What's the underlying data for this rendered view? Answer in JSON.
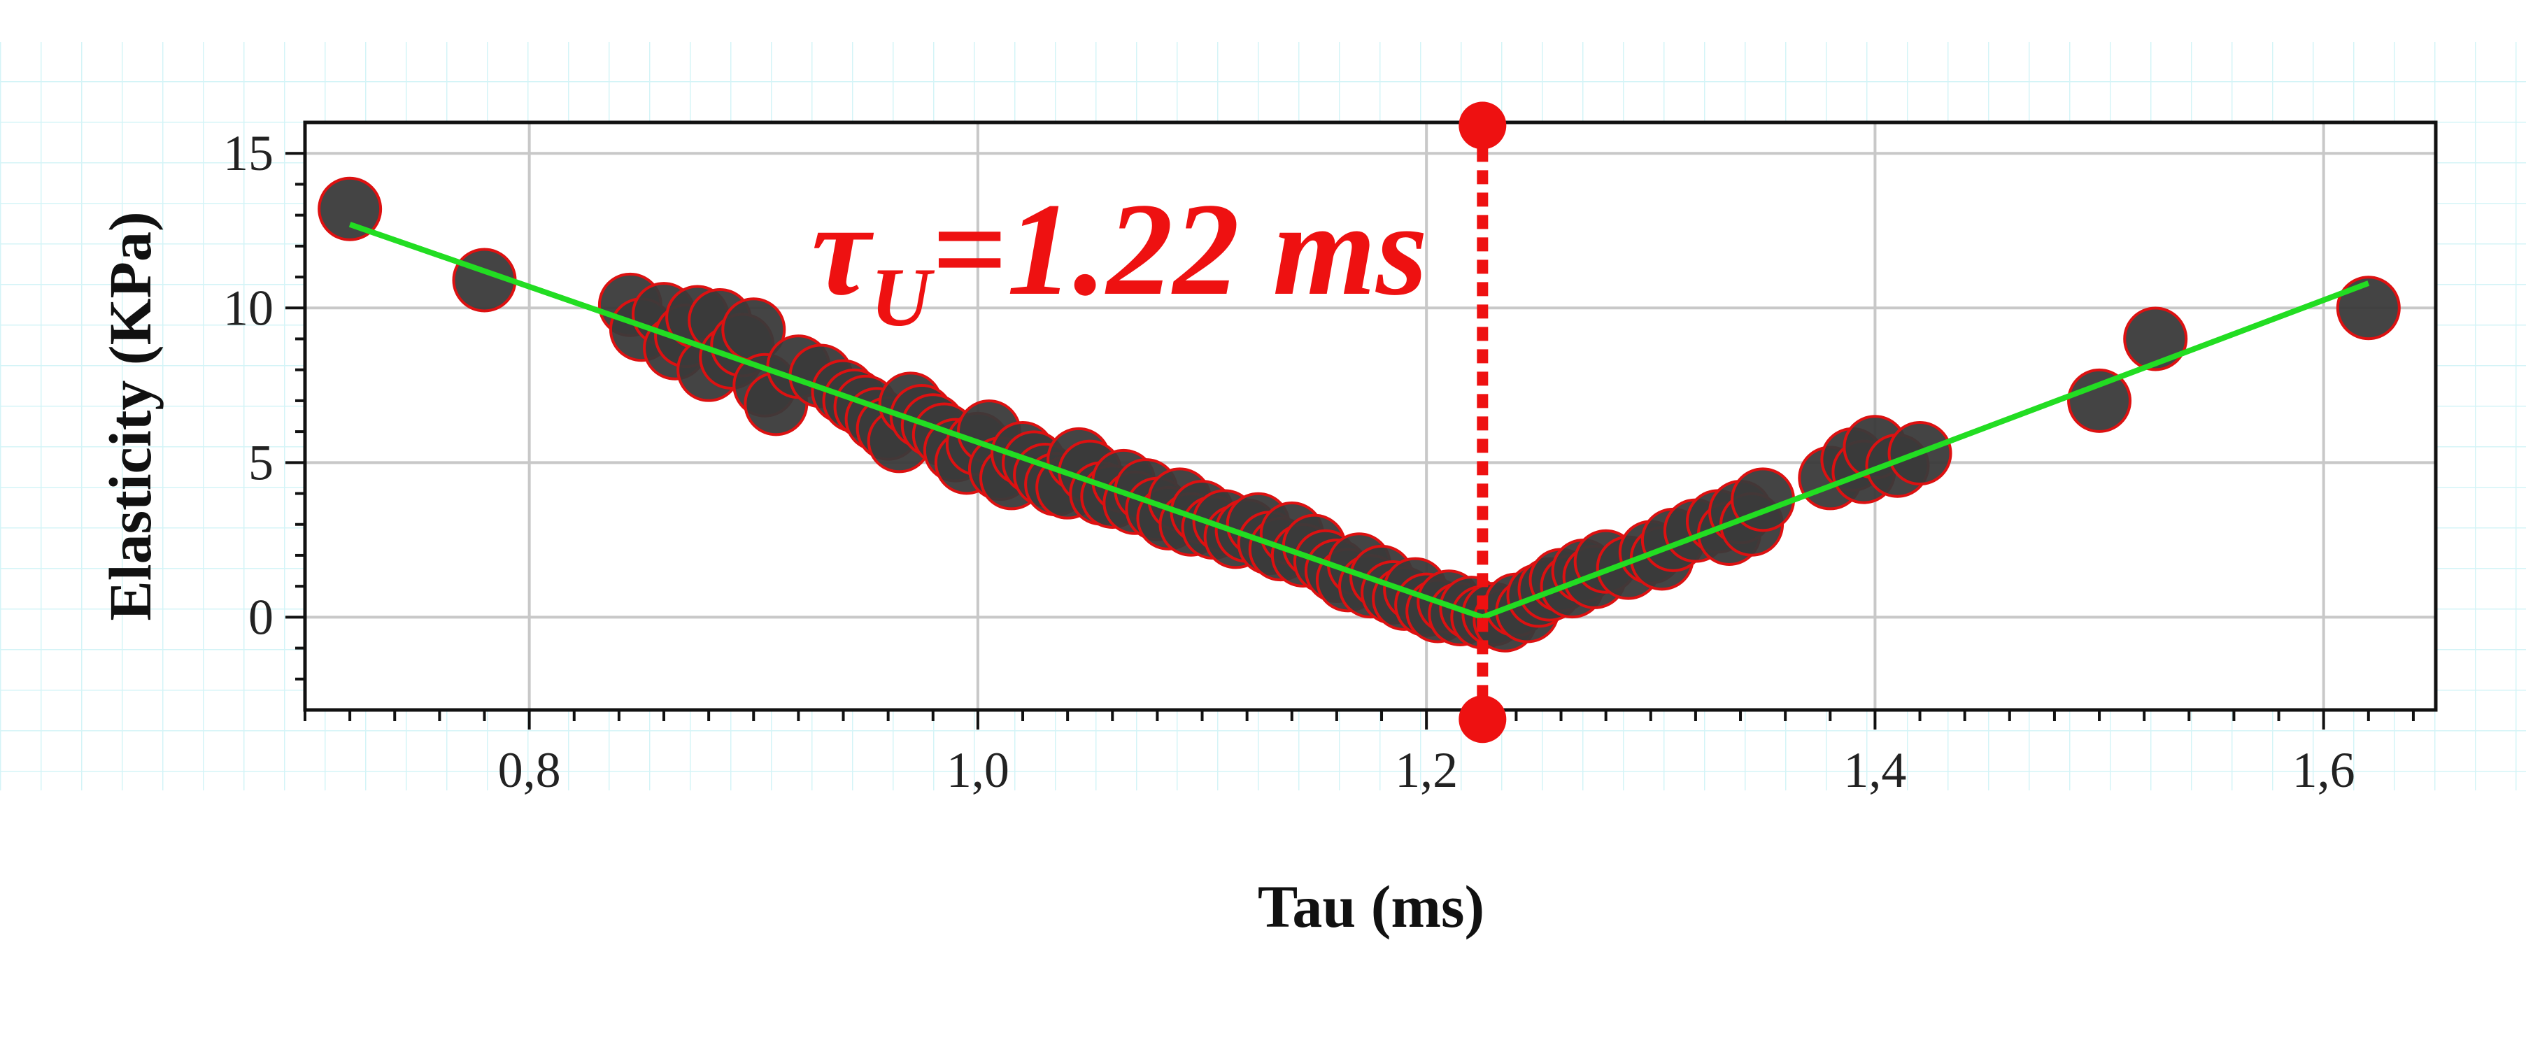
{
  "chart_data": {
    "type": "scatter",
    "title": "",
    "xlabel": "Tau (ms)",
    "ylabel": "Elasticity (KPa)",
    "xlim": [
      0.7,
      1.65
    ],
    "ylim": [
      -3,
      16
    ],
    "xticks": [
      0.8,
      1.0,
      1.2,
      1.4,
      1.6
    ],
    "xtick_labels": [
      "0,8",
      "1,0",
      "1,2",
      "1,4",
      "1,6"
    ],
    "yticks": [
      0,
      5,
      10,
      15
    ],
    "ytick_labels": [
      "0",
      "5",
      "10",
      "15"
    ],
    "grid": true,
    "legend": "none",
    "colors": {
      "marker_fill": "#3a3a3a",
      "marker_edge": "#dd1111",
      "fit_line": "#22dd22",
      "annotation": "#ee1111",
      "background_grid": "#d4f4f7"
    },
    "series": [
      {
        "x": [
          0.72,
          0.78,
          0.845,
          0.85,
          0.86,
          0.865,
          0.87,
          0.875,
          0.88,
          0.885,
          0.89,
          0.895,
          0.9,
          0.905,
          0.91,
          0.92,
          0.93,
          0.94,
          0.945,
          0.95,
          0.955,
          0.96,
          0.965,
          0.97,
          0.975,
          0.98,
          0.985,
          0.99,
          0.995,
          1.0,
          1.005,
          1.01,
          1.015,
          1.02,
          1.025,
          1.03,
          1.035,
          1.04,
          1.045,
          1.05,
          1.055,
          1.06,
          1.065,
          1.07,
          1.075,
          1.08,
          1.085,
          1.09,
          1.095,
          1.1,
          1.105,
          1.11,
          1.115,
          1.12,
          1.125,
          1.13,
          1.135,
          1.14,
          1.145,
          1.15,
          1.155,
          1.16,
          1.165,
          1.17,
          1.175,
          1.18,
          1.185,
          1.19,
          1.195,
          1.2,
          1.205,
          1.21,
          1.215,
          1.22,
          1.225,
          1.23,
          1.235,
          1.24,
          1.245,
          1.25,
          1.255,
          1.26,
          1.265,
          1.27,
          1.275,
          1.28,
          1.29,
          1.3,
          1.305,
          1.31,
          1.32,
          1.33,
          1.335,
          1.34,
          1.345,
          1.35,
          1.38,
          1.39,
          1.395,
          1.4,
          1.41,
          1.42,
          1.5,
          1.525,
          1.62
        ],
        "y": [
          13.2,
          10.9,
          10.1,
          9.3,
          9.8,
          8.7,
          9.1,
          9.7,
          8.0,
          9.6,
          8.4,
          8.8,
          9.3,
          7.5,
          6.9,
          8.1,
          7.8,
          7.3,
          7.0,
          6.8,
          6.4,
          6.1,
          5.7,
          6.9,
          6.5,
          6.2,
          5.9,
          5.4,
          5.0,
          5.6,
          6.0,
          4.8,
          4.5,
          5.3,
          5.0,
          4.6,
          4.3,
          4.2,
          5.1,
          4.7,
          4.0,
          3.9,
          4.4,
          3.7,
          4.1,
          3.5,
          3.2,
          3.8,
          3.0,
          3.4,
          2.9,
          3.1,
          2.6,
          2.8,
          3.0,
          2.4,
          2.2,
          2.7,
          2.0,
          2.3,
          1.8,
          1.5,
          1.2,
          1.7,
          1.0,
          1.3,
          0.8,
          0.6,
          0.9,
          0.4,
          0.2,
          0.5,
          0.1,
          0.3,
          0.0,
          0.1,
          -0.1,
          0.4,
          0.2,
          0.7,
          0.9,
          1.2,
          1.0,
          1.5,
          1.3,
          1.8,
          1.6,
          2.1,
          1.9,
          2.5,
          2.8,
          3.1,
          2.7,
          3.4,
          3.0,
          3.8,
          4.5,
          5.1,
          4.7,
          5.5,
          4.9,
          5.3,
          7.0,
          9.0,
          10.0
        ]
      }
    ],
    "fit_lines": [
      {
        "x": [
          0.72,
          1.225
        ],
        "y": [
          12.7,
          0.0
        ]
      },
      {
        "x": [
          1.225,
          1.62
        ],
        "y": [
          0.0,
          10.8
        ]
      }
    ],
    "annotations": [
      {
        "kind": "vline",
        "x": 1.225,
        "y_from": -3.3,
        "y_to": 15.9
      },
      {
        "kind": "text",
        "text_main": "τ",
        "text_sub": "U",
        "text_rest": "=1.22 ms"
      }
    ]
  }
}
